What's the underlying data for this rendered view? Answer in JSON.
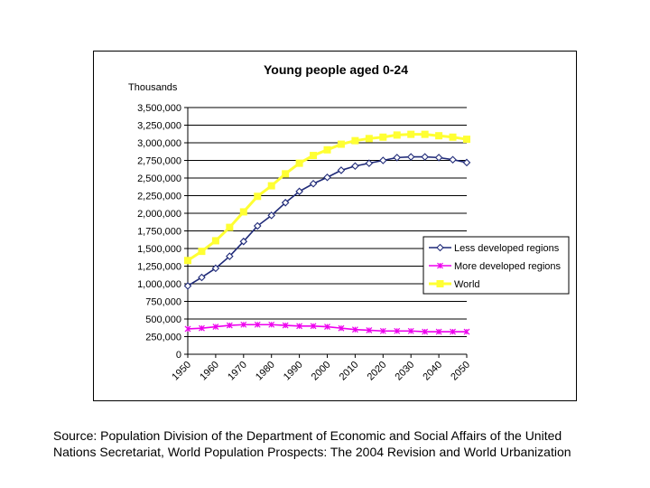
{
  "chart_data": {
    "type": "line",
    "title": "Young people aged 0-24",
    "ylabel": "Thousands",
    "xlabel": "",
    "ylim": [
      0,
      3500000
    ],
    "yticks": [
      0,
      250000,
      500000,
      750000,
      1000000,
      1250000,
      1500000,
      1750000,
      2000000,
      2250000,
      2500000,
      2750000,
      3000000,
      3250000,
      3500000
    ],
    "ytick_labels": [
      "0",
      "250,000",
      "500,000",
      "750,000",
      "1,000,000",
      "1,250,000",
      "1,500,000",
      "1,750,000",
      "2,000,000",
      "2,250,000",
      "2,500,000",
      "2,750,000",
      "3,000,000",
      "3,250,000",
      "3,500,000"
    ],
    "x": [
      1950,
      1955,
      1960,
      1965,
      1970,
      1975,
      1980,
      1985,
      1990,
      1995,
      2000,
      2005,
      2010,
      2015,
      2020,
      2025,
      2030,
      2035,
      2040,
      2045,
      2050
    ],
    "xticks": [
      1950,
      1960,
      1970,
      1980,
      1990,
      2000,
      2010,
      2020,
      2030,
      2040,
      2050
    ],
    "grid": true,
    "legend_position": "right",
    "series": [
      {
        "name": "Less developed regions",
        "color": "#1f2a78",
        "marker": "diamond",
        "values": [
          970000,
          1090000,
          1220000,
          1390000,
          1600000,
          1820000,
          1970000,
          2150000,
          2310000,
          2420000,
          2510000,
          2610000,
          2670000,
          2710000,
          2750000,
          2790000,
          2800000,
          2800000,
          2790000,
          2760000,
          2720000
        ]
      },
      {
        "name": "More developed regions",
        "color": "#ee00ee",
        "marker": "cross",
        "values": [
          360000,
          370000,
          390000,
          410000,
          420000,
          420000,
          420000,
          410000,
          400000,
          400000,
          390000,
          370000,
          350000,
          340000,
          330000,
          330000,
          330000,
          320000,
          320000,
          320000,
          320000
        ]
      },
      {
        "name": "World",
        "color": "#ffff33",
        "marker": "square",
        "values": [
          1330000,
          1460000,
          1610000,
          1800000,
          2020000,
          2240000,
          2390000,
          2560000,
          2710000,
          2820000,
          2900000,
          2980000,
          3030000,
          3060000,
          3080000,
          3110000,
          3120000,
          3120000,
          3100000,
          3080000,
          3050000
        ]
      }
    ]
  },
  "source": {
    "line1": "Source: Population Division of the Department of Economic and Social Affairs of the United",
    "line2": "Nations Secretariat, World Population Prospects: The 2004 Revision and World Urbanization"
  }
}
